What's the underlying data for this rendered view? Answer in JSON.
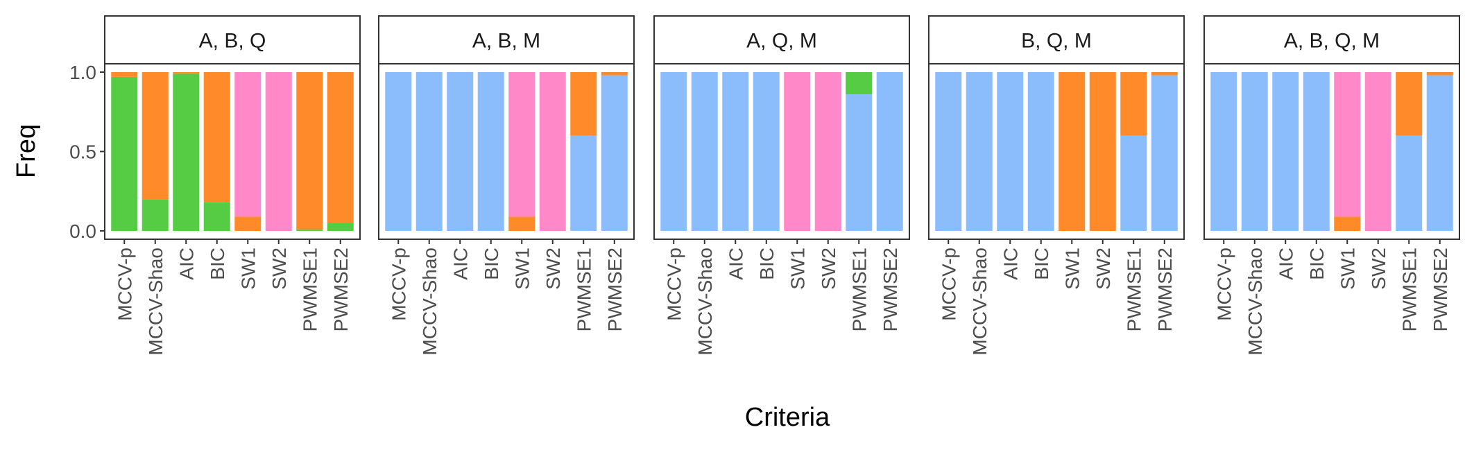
{
  "chart_data": {
    "type": "bar",
    "stacked": true,
    "facet_titles": [
      "A, B, Q",
      "A, B, M",
      "A, Q, M",
      "B, Q, M",
      "A, B, Q, M"
    ],
    "categories": [
      "MCCV-p",
      "MCCV-Shao",
      "AIC",
      "BIC",
      "SW1",
      "SW2",
      "PWMSE1",
      "PWMSE2"
    ],
    "xlabel": "Criteria",
    "ylabel": "Freq",
    "ylim": [
      0,
      1
    ],
    "y_ticks": [
      "0.0",
      "0.5",
      "1.0"
    ],
    "colors": {
      "green": "#55cc44",
      "orange": "#ff8a2a",
      "pink": "#ff88c8",
      "blue": "#8bbdfd"
    },
    "legend": "none",
    "panels": [
      {
        "title": "A, B, Q",
        "bars": [
          [
            {
              "color": "green",
              "value": 0.97
            },
            {
              "color": "orange",
              "value": 0.03
            }
          ],
          [
            {
              "color": "green",
              "value": 0.2
            },
            {
              "color": "orange",
              "value": 0.8
            }
          ],
          [
            {
              "color": "green",
              "value": 0.99
            },
            {
              "color": "orange",
              "value": 0.01
            }
          ],
          [
            {
              "color": "green",
              "value": 0.18
            },
            {
              "color": "orange",
              "value": 0.82
            }
          ],
          [
            {
              "color": "orange",
              "value": 0.09
            },
            {
              "color": "pink",
              "value": 0.91
            }
          ],
          [
            {
              "color": "pink",
              "value": 1.0
            }
          ],
          [
            {
              "color": "green",
              "value": 0.01
            },
            {
              "color": "orange",
              "value": 0.99
            }
          ],
          [
            {
              "color": "green",
              "value": 0.05
            },
            {
              "color": "orange",
              "value": 0.95
            }
          ]
        ]
      },
      {
        "title": "A, B, M",
        "bars": [
          [
            {
              "color": "blue",
              "value": 1.0
            }
          ],
          [
            {
              "color": "blue",
              "value": 1.0
            }
          ],
          [
            {
              "color": "blue",
              "value": 1.0
            }
          ],
          [
            {
              "color": "blue",
              "value": 1.0
            }
          ],
          [
            {
              "color": "orange",
              "value": 0.09
            },
            {
              "color": "pink",
              "value": 0.91
            }
          ],
          [
            {
              "color": "pink",
              "value": 1.0
            }
          ],
          [
            {
              "color": "blue",
              "value": 0.6
            },
            {
              "color": "orange",
              "value": 0.4
            }
          ],
          [
            {
              "color": "blue",
              "value": 0.98
            },
            {
              "color": "orange",
              "value": 0.02
            }
          ]
        ]
      },
      {
        "title": "A, Q, M",
        "bars": [
          [
            {
              "color": "blue",
              "value": 1.0
            }
          ],
          [
            {
              "color": "blue",
              "value": 1.0
            }
          ],
          [
            {
              "color": "blue",
              "value": 1.0
            }
          ],
          [
            {
              "color": "blue",
              "value": 1.0
            }
          ],
          [
            {
              "color": "pink",
              "value": 1.0
            }
          ],
          [
            {
              "color": "pink",
              "value": 1.0
            }
          ],
          [
            {
              "color": "blue",
              "value": 0.86
            },
            {
              "color": "green",
              "value": 0.14
            }
          ],
          [
            {
              "color": "blue",
              "value": 1.0
            }
          ]
        ]
      },
      {
        "title": "B, Q, M",
        "bars": [
          [
            {
              "color": "blue",
              "value": 1.0
            }
          ],
          [
            {
              "color": "blue",
              "value": 1.0
            }
          ],
          [
            {
              "color": "blue",
              "value": 1.0
            }
          ],
          [
            {
              "color": "blue",
              "value": 1.0
            }
          ],
          [
            {
              "color": "orange",
              "value": 1.0
            }
          ],
          [
            {
              "color": "orange",
              "value": 1.0
            }
          ],
          [
            {
              "color": "blue",
              "value": 0.6
            },
            {
              "color": "orange",
              "value": 0.4
            }
          ],
          [
            {
              "color": "blue",
              "value": 0.98
            },
            {
              "color": "orange",
              "value": 0.02
            }
          ]
        ]
      },
      {
        "title": "A, B, Q, M",
        "bars": [
          [
            {
              "color": "blue",
              "value": 1.0
            }
          ],
          [
            {
              "color": "blue",
              "value": 1.0
            }
          ],
          [
            {
              "color": "blue",
              "value": 1.0
            }
          ],
          [
            {
              "color": "blue",
              "value": 1.0
            }
          ],
          [
            {
              "color": "orange",
              "value": 0.09
            },
            {
              "color": "pink",
              "value": 0.91
            }
          ],
          [
            {
              "color": "pink",
              "value": 1.0
            }
          ],
          [
            {
              "color": "blue",
              "value": 0.6
            },
            {
              "color": "orange",
              "value": 0.4
            }
          ],
          [
            {
              "color": "blue",
              "value": 0.98
            },
            {
              "color": "orange",
              "value": 0.02
            }
          ]
        ]
      }
    ]
  }
}
